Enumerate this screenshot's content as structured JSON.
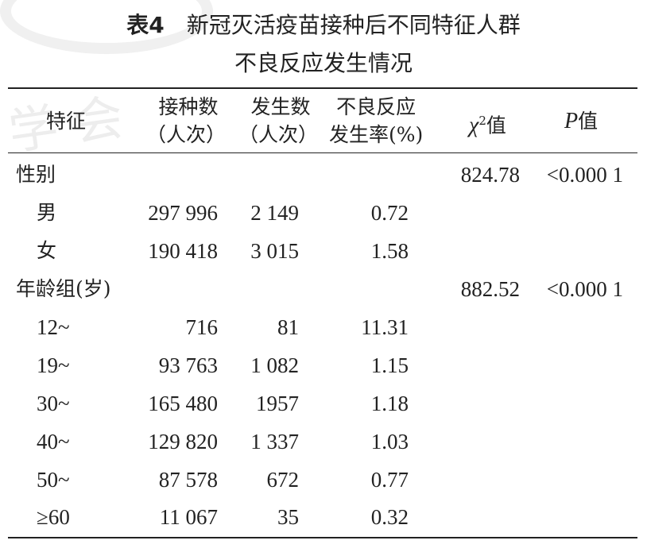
{
  "title": {
    "label": "表4",
    "line1": "新冠灭活疫苗接种后不同特征人群",
    "line2": "不良反应发生情况"
  },
  "header": {
    "feature": "特征",
    "doses_line1": "接种数",
    "doses_line2": "（人次）",
    "cases_line1": "发生数",
    "cases_line2": "（人次）",
    "rate_line1": "不良反应",
    "rate_line2": "发生率(%)",
    "chi_symbol": "χ",
    "chi_sup": "2",
    "chi_suffix": "值",
    "p_symbol": "P",
    "p_suffix": "值"
  },
  "rows": [
    {
      "feature": "性别",
      "doses": "",
      "cases": "",
      "rate": "",
      "chi": "824.78",
      "p": "<0.000 1",
      "group": true
    },
    {
      "feature": "男",
      "doses": "297 996",
      "cases": "2 149",
      "rate": "0.72",
      "chi": "",
      "p": ""
    },
    {
      "feature": "女",
      "doses": "190 418",
      "cases": "3 015",
      "rate": "1.58",
      "chi": "",
      "p": ""
    },
    {
      "feature": "年龄组(岁)",
      "doses": "",
      "cases": "",
      "rate": "",
      "chi": "882.52",
      "p": "<0.000 1",
      "group": true
    },
    {
      "feature": "12~",
      "doses": "716",
      "cases": "81",
      "rate": "11.31",
      "chi": "",
      "p": ""
    },
    {
      "feature": "19~",
      "doses": "93 763",
      "cases": "1 082",
      "rate": "1.15",
      "chi": "",
      "p": ""
    },
    {
      "feature": "30~",
      "doses": "165 480",
      "cases": "1957",
      "rate": "1.18",
      "chi": "",
      "p": ""
    },
    {
      "feature": "40~",
      "doses": "129 820",
      "cases": "1 337",
      "rate": "1.03",
      "chi": "",
      "p": ""
    },
    {
      "feature": "50~",
      "doses": "87 578",
      "cases": "672",
      "rate": "0.77",
      "chi": "",
      "p": ""
    },
    {
      "feature": "≥60",
      "doses": "11 067",
      "cases": "35",
      "rate": "0.32",
      "chi": "",
      "p": ""
    }
  ]
}
